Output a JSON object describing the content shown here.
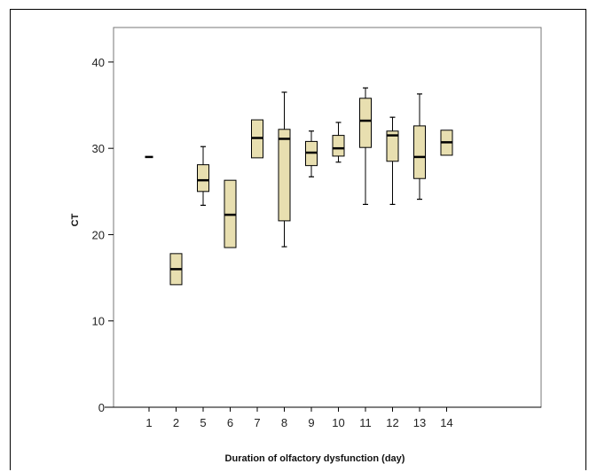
{
  "chart_data": {
    "type": "box",
    "title": "",
    "xlabel": "Duration of olfactory dysfunction (day)",
    "ylabel": "CT",
    "ylim": [
      0,
      44
    ],
    "yticks": [
      0,
      10,
      20,
      30,
      40
    ],
    "grid": false,
    "box_color": "#e8dfb0",
    "categories": [
      "1",
      "2",
      "5",
      "6",
      "7",
      "8",
      "9",
      "10",
      "11",
      "12",
      "13",
      "14"
    ],
    "boxes": [
      {
        "category": "1",
        "min": 29.0,
        "q1": 29.0,
        "median": 29.0,
        "q3": 29.0,
        "max": 29.0
      },
      {
        "category": "2",
        "min": 14.2,
        "q1": 14.2,
        "median": 16.0,
        "q3": 17.8,
        "max": 17.8
      },
      {
        "category": "5",
        "min": 23.4,
        "q1": 25.0,
        "median": 26.3,
        "q3": 28.1,
        "max": 30.2
      },
      {
        "category": "6",
        "min": 18.5,
        "q1": 18.5,
        "median": 22.3,
        "q3": 26.3,
        "max": 26.3
      },
      {
        "category": "7",
        "min": 28.9,
        "q1": 28.9,
        "median": 31.2,
        "q3": 33.3,
        "max": 33.3
      },
      {
        "category": "8",
        "min": 18.6,
        "q1": 21.6,
        "median": 31.1,
        "q3": 32.2,
        "max": 36.5
      },
      {
        "category": "9",
        "min": 26.7,
        "q1": 28.0,
        "median": 29.5,
        "q3": 30.8,
        "max": 32.0
      },
      {
        "category": "10",
        "min": 28.4,
        "q1": 29.1,
        "median": 30.0,
        "q3": 31.5,
        "max": 33.0
      },
      {
        "category": "11",
        "min": 23.5,
        "q1": 30.1,
        "median": 33.2,
        "q3": 35.8,
        "max": 37.0
      },
      {
        "category": "12",
        "min": 23.5,
        "q1": 28.5,
        "median": 31.5,
        "q3": 32.0,
        "max": 33.6
      },
      {
        "category": "13",
        "min": 24.1,
        "q1": 26.5,
        "median": 29.0,
        "q3": 32.6,
        "max": 36.3
      },
      {
        "category": "14",
        "min": 29.2,
        "q1": 29.2,
        "median": 30.7,
        "q3": 32.1,
        "max": 32.1
      }
    ]
  }
}
